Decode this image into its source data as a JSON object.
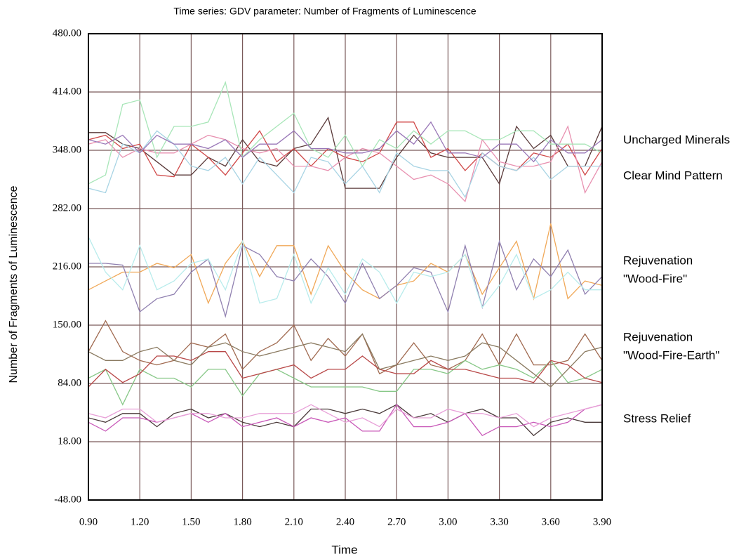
{
  "chart_data": {
    "type": "line",
    "title": "Time series: GDV parameter: Number of Fragments of Luminescence",
    "x_label": "Time",
    "y_label": "Number of Fragments of Luminescence",
    "x": [
      0.9,
      1.0,
      1.1,
      1.2,
      1.3,
      1.4,
      1.5,
      1.6,
      1.7,
      1.8,
      1.9,
      2.0,
      2.1,
      2.2,
      2.3,
      2.4,
      2.5,
      2.6,
      2.7,
      2.8,
      2.9,
      3.0,
      3.1,
      3.2,
      3.3,
      3.4,
      3.5,
      3.6,
      3.7,
      3.8,
      3.9
    ],
    "xlim": [
      0.9,
      3.9
    ],
    "xticks": [
      {
        "value": 0.9,
        "label": "0.90"
      },
      {
        "value": 1.2,
        "label": "1.20"
      },
      {
        "value": 1.5,
        "label": "1.50"
      },
      {
        "value": 1.8,
        "label": "1.80"
      },
      {
        "value": 2.1,
        "label": "2.10"
      },
      {
        "value": 2.4,
        "label": "2.40"
      },
      {
        "value": 2.7,
        "label": "2.70"
      },
      {
        "value": 3.0,
        "label": "3.00"
      },
      {
        "value": 3.3,
        "label": "3.30"
      },
      {
        "value": 3.6,
        "label": "3.60"
      },
      {
        "value": 3.9,
        "label": "3.90"
      }
    ],
    "ylim": [
      -48,
      480
    ],
    "yticks": [
      {
        "value": -48,
        "label": "-48.00"
      },
      {
        "value": 18,
        "label": "18.00"
      },
      {
        "value": 84,
        "label": "84.00"
      },
      {
        "value": 150,
        "label": "150.00"
      },
      {
        "value": 216,
        "label": "216.00"
      },
      {
        "value": 282,
        "label": "282.00"
      },
      {
        "value": 348,
        "label": "348.00"
      },
      {
        "value": 414,
        "label": "414.00"
      },
      {
        "value": 480,
        "label": "480.00"
      }
    ],
    "grid": true,
    "annotations": [
      [
        "Uncharged Minerals"
      ],
      [
        "Clear Mind Pattern"
      ],
      [
        "Rejuvenation",
        "\"Wood-Fire\""
      ],
      [
        "Rejuvenation",
        "\"Wood-Fire-Earth\""
      ],
      [
        "Stress Relief"
      ]
    ],
    "series": [
      {
        "color": "#5a3a3a",
        "values": [
          368,
          368,
          355,
          350,
          335,
          320,
          320,
          340,
          330,
          360,
          335,
          330,
          350,
          355,
          385,
          305,
          305,
          305,
          340,
          365,
          345,
          340,
          340,
          340,
          310,
          375,
          350,
          365,
          330,
          330,
          375
        ]
      },
      {
        "color": "#d04848",
        "values": [
          360,
          365,
          350,
          355,
          320,
          318,
          355,
          340,
          320,
          345,
          370,
          335,
          350,
          330,
          350,
          340,
          335,
          345,
          380,
          380,
          340,
          350,
          325,
          345,
          330,
          325,
          345,
          340,
          355,
          320,
          350
        ]
      },
      {
        "color": "#e890b0",
        "values": [
          355,
          360,
          340,
          350,
          345,
          345,
          355,
          365,
          360,
          350,
          345,
          350,
          330,
          330,
          325,
          340,
          350,
          345,
          330,
          315,
          320,
          310,
          290,
          360,
          335,
          330,
          330,
          335,
          375,
          300,
          335
        ]
      },
      {
        "color": "#a8e6b8",
        "values": [
          310,
          320,
          400,
          405,
          340,
          375,
          375,
          380,
          425,
          340,
          360,
          375,
          390,
          350,
          340,
          365,
          330,
          360,
          350,
          370,
          355,
          370,
          370,
          360,
          360,
          370,
          370,
          355,
          355,
          355,
          345
        ]
      },
      {
        "color": "#a8d4e4",
        "values": [
          305,
          300,
          355,
          345,
          370,
          355,
          330,
          325,
          340,
          310,
          340,
          320,
          300,
          340,
          335,
          310,
          330,
          300,
          345,
          330,
          325,
          325,
          295,
          345,
          330,
          325,
          340,
          315,
          330,
          330,
          330
        ]
      },
      {
        "color": "#9a78b8",
        "values": [
          360,
          355,
          365,
          345,
          365,
          355,
          355,
          350,
          360,
          340,
          355,
          355,
          370,
          350,
          350,
          345,
          345,
          350,
          370,
          355,
          380,
          345,
          345,
          340,
          355,
          355,
          335,
          360,
          345,
          345,
          360
        ]
      },
      {
        "color": "#f0a858",
        "values": [
          190,
          200,
          210,
          210,
          220,
          215,
          230,
          175,
          220,
          245,
          205,
          240,
          240,
          185,
          240,
          210,
          190,
          180,
          195,
          200,
          220,
          210,
          230,
          185,
          215,
          245,
          180,
          265,
          180,
          200,
          195
        ]
      },
      {
        "color": "#9080b0",
        "values": [
          220,
          220,
          218,
          165,
          180,
          185,
          210,
          225,
          160,
          240,
          230,
          205,
          200,
          225,
          205,
          175,
          220,
          180,
          195,
          215,
          210,
          165,
          240,
          170,
          245,
          190,
          225,
          205,
          235,
          185,
          205
        ]
      },
      {
        "color": "#b8ecec",
        "values": [
          250,
          210,
          190,
          240,
          190,
          200,
          220,
          225,
          190,
          245,
          175,
          180,
          230,
          175,
          215,
          185,
          225,
          210,
          175,
          210,
          205,
          210,
          230,
          170,
          195,
          230,
          180,
          190,
          210,
          190,
          190
        ]
      },
      {
        "color": "#a06a50",
        "values": [
          120,
          155,
          120,
          110,
          105,
          110,
          130,
          125,
          140,
          100,
          120,
          130,
          150,
          110,
          135,
          115,
          140,
          95,
          105,
          130,
          105,
          100,
          110,
          140,
          105,
          140,
          105,
          105,
          110,
          140,
          110
        ]
      },
      {
        "color": "#88c888",
        "values": [
          90,
          100,
          60,
          100,
          90,
          90,
          80,
          100,
          100,
          70,
          95,
          100,
          90,
          80,
          80,
          80,
          80,
          75,
          75,
          100,
          100,
          95,
          110,
          100,
          105,
          100,
          90,
          110,
          85,
          90,
          100
        ]
      },
      {
        "color": "#b84848",
        "values": [
          80,
          100,
          85,
          95,
          115,
          115,
          110,
          120,
          120,
          90,
          95,
          100,
          105,
          90,
          100,
          100,
          115,
          100,
          95,
          95,
          110,
          100,
          100,
          95,
          90,
          90,
          85,
          110,
          105,
          90,
          85
        ]
      },
      {
        "color": "#8a7a60",
        "values": [
          120,
          110,
          110,
          120,
          125,
          110,
          105,
          125,
          130,
          120,
          115,
          120,
          125,
          130,
          125,
          120,
          140,
          100,
          105,
          110,
          115,
          110,
          115,
          130,
          125,
          110,
          95,
          80,
          100,
          120,
          125
        ]
      },
      {
        "color": "#4a3a3a",
        "values": [
          45,
          40,
          50,
          50,
          35,
          50,
          55,
          45,
          50,
          40,
          35,
          40,
          35,
          55,
          55,
          50,
          55,
          50,
          60,
          45,
          50,
          40,
          50,
          55,
          45,
          45,
          25,
          40,
          45,
          40,
          40
        ]
      },
      {
        "color": "#c858b8",
        "values": [
          40,
          30,
          45,
          45,
          40,
          45,
          50,
          40,
          50,
          35,
          40,
          45,
          35,
          45,
          40,
          45,
          30,
          30,
          60,
          35,
          35,
          40,
          50,
          25,
          35,
          35,
          40,
          35,
          40,
          55,
          60
        ]
      },
      {
        "color": "#e8a0d8",
        "values": [
          50,
          45,
          55,
          55,
          40,
          45,
          50,
          50,
          45,
          45,
          50,
          50,
          50,
          60,
          50,
          40,
          45,
          35,
          55,
          45,
          45,
          55,
          50,
          50,
          45,
          50,
          35,
          45,
          50,
          55,
          60
        ]
      }
    ]
  }
}
